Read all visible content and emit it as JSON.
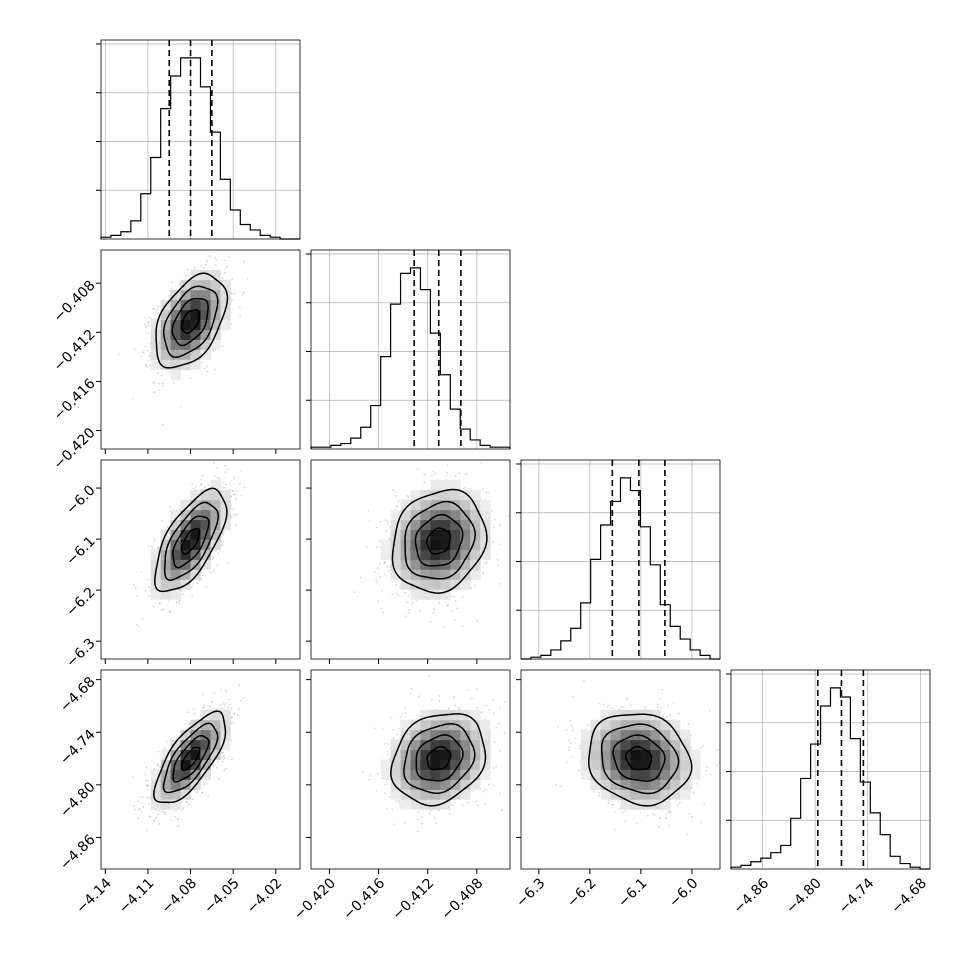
{
  "chart_data": {
    "type": "corner",
    "n_params": 4,
    "params": [
      {
        "median": -4.08,
        "quantiles": [
          -4.095,
          -4.08,
          -4.065
        ],
        "sigma": 0.0125,
        "range": [
          -4.143,
          -4.003
        ],
        "ticks": [
          -4.14,
          -4.11,
          -4.08,
          -4.05,
          -4.02
        ],
        "tick_labels": [
          "−4.14",
          "−4.11",
          "−4.08",
          "−4.05",
          "−4.02"
        ],
        "hist_counts": [
          1,
          2,
          4,
          10,
          25,
          45,
          72,
          90,
          100,
          100,
          84,
          59,
          33,
          16,
          8,
          5,
          2,
          1,
          0,
          0
        ]
      },
      {
        "median": -0.4111,
        "quantiles": [
          -0.4131,
          -0.4111,
          -0.4093
        ],
        "sigma": 0.0019,
        "range": [
          -0.4215,
          -0.4053
        ],
        "ticks": [
          -0.42,
          -0.416,
          -0.412,
          -0.408
        ],
        "tick_labels": [
          "−0.420",
          "−0.416",
          "−0.412",
          "−0.408"
        ],
        "hist_counts": [
          1,
          1,
          2,
          3,
          6,
          12,
          24,
          51,
          80,
          97,
          100,
          88,
          64,
          41,
          22,
          11,
          5,
          2,
          1,
          1
        ]
      },
      {
        "median": -6.104,
        "quantiles": [
          -6.156,
          -6.104,
          -6.053
        ],
        "sigma": 0.05,
        "range": [
          -6.335,
          -5.945
        ],
        "ticks": [
          -6.3,
          -6.2,
          -6.1,
          -6.0
        ],
        "tick_labels": [
          "−6.3",
          "−6.2",
          "−6.1",
          "−6.0"
        ],
        "hist_counts": [
          0,
          1,
          2,
          5,
          10,
          17,
          31,
          55,
          74,
          87,
          100,
          93,
          73,
          52,
          30,
          18,
          11,
          5,
          2,
          0
        ]
      },
      {
        "median": -4.77,
        "quantiles": [
          -4.797,
          -4.77,
          -4.745
        ],
        "sigma": 0.026,
        "range": [
          -4.896,
          -4.669
        ],
        "ticks": [
          -4.86,
          -4.8,
          -4.74,
          -4.68
        ],
        "tick_labels": [
          "−4.86",
          "−4.80",
          "−4.74",
          "−4.68"
        ],
        "hist_counts": [
          1,
          2,
          4,
          6,
          9,
          13,
          28,
          50,
          69,
          90,
          100,
          95,
          72,
          48,
          31,
          19,
          7,
          3,
          1,
          0
        ]
      }
    ],
    "correlations": {
      "1-0": 0.45,
      "2-0": 0.65,
      "2-1": 0.15,
      "3-0": 0.72,
      "3-1": 0.2,
      "3-2": -0.12
    },
    "contour_levels_sigma": [
      0.5,
      1.0,
      1.5,
      2.0
    ],
    "grid": true,
    "colors": {
      "scatter": "#8c8c8c",
      "lines": "#000000",
      "grid": "#b0b0b0",
      "density_max": "#000000",
      "density_min": "#ffffff"
    }
  }
}
